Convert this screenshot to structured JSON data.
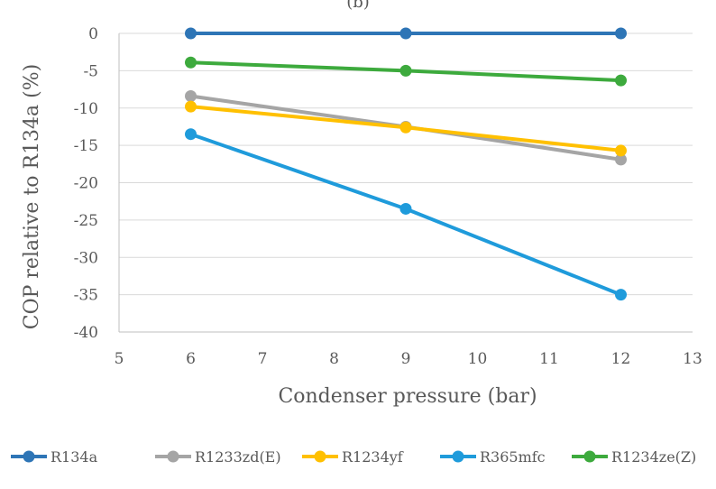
{
  "chart_data": {
    "type": "line",
    "title": "",
    "top_label_partial": "(b)",
    "xlabel": "Condenser pressure (bar)",
    "ylabel": "COP relative to R134a (%)",
    "xlim": [
      5,
      13
    ],
    "ylim": [
      -40,
      0
    ],
    "x_ticks": [
      5,
      6,
      7,
      8,
      9,
      10,
      11,
      12,
      13
    ],
    "y_ticks": [
      0,
      -5,
      -10,
      -15,
      -20,
      -25,
      -30,
      -35,
      -40
    ],
    "grid": "horizontal",
    "legend_position": "bottom",
    "x": [
      6,
      9,
      12
    ],
    "series": [
      {
        "name": "R134a",
        "color": "#2E75B6",
        "values": [
          0,
          0,
          0
        ]
      },
      {
        "name": "R1233zd(E)",
        "color": "#A5A5A5",
        "values": [
          -8.4,
          -12.5,
          -16.9
        ]
      },
      {
        "name": "R1234yf",
        "color": "#FFC000",
        "values": [
          -9.8,
          -12.6,
          -15.7
        ]
      },
      {
        "name": "R365mfc",
        "color": "#1F9BDB",
        "values": [
          -13.5,
          -23.5,
          -35.0
        ]
      },
      {
        "name": "R1234ze(Z)",
        "color": "#3DAA3D",
        "values": [
          -3.9,
          -5.0,
          -6.3
        ]
      }
    ]
  }
}
